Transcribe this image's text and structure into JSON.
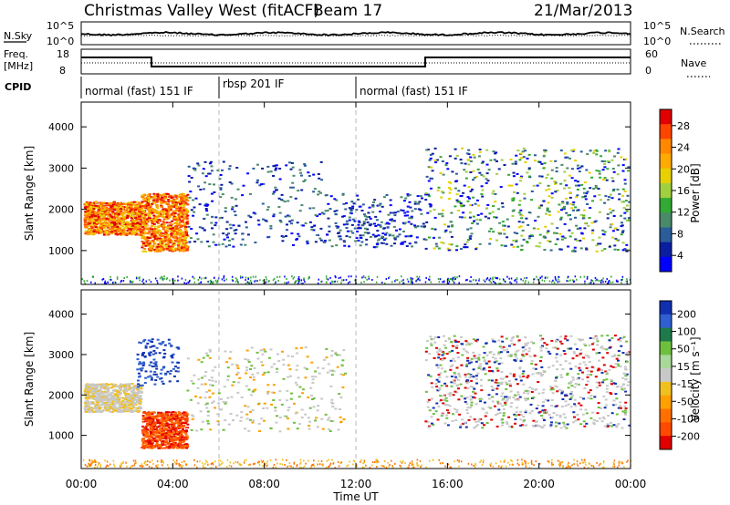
{
  "header": {
    "station": "Christmas Valley West (fitACF)",
    "beam": "Beam 17",
    "date": "21/Mar/2013"
  },
  "strips": {
    "nsky_label": "N.Sky",
    "nsearch_label": "N.Search",
    "noise_ticks": [
      "10^5",
      "10^0"
    ],
    "freq_label_1": "Freq.",
    "freq_label_2": "[MHz]",
    "freq_ticks": [
      "18",
      "8"
    ],
    "nave_label": "Nave",
    "nave_ticks": [
      "60",
      "0"
    ],
    "cpid_label": "CPID",
    "cpid_segments": [
      {
        "label": "normal (fast) 151 IF",
        "start": 0,
        "end": 6
      },
      {
        "label": "rbsp 201 IF",
        "start": 6,
        "end": 12
      },
      {
        "label": "normal (fast) 151 IF",
        "start": 12,
        "end": 24
      }
    ]
  },
  "chart_data": [
    {
      "type": "heatmap",
      "name": "power",
      "ylabel": "Slant Range [km]",
      "ylim": [
        180,
        4600
      ],
      "yticks": [
        1000,
        2000,
        3000,
        4000
      ],
      "colorbar_label": "Power [dB]",
      "colorbar_ticks": [
        "28",
        "24",
        "20",
        "16",
        "12",
        "8",
        "4"
      ],
      "colorbar_colors": [
        "#e00000",
        "#ff4400",
        "#ff8800",
        "#ffaa00",
        "#e8d000",
        "#a0d040",
        "#33aa33",
        "#4a8a6a",
        "#2a5d9a",
        "#0a1ea0",
        "#0000ff"
      ],
      "scatter_bands": [
        {
          "t0": 0.1,
          "t1": 2.6,
          "r0": 1400,
          "r1": 2200,
          "dense": "high"
        },
        {
          "t0": 2.6,
          "t1": 4.6,
          "r0": 1000,
          "r1": 2400,
          "dense": "high"
        },
        {
          "t0": 4.6,
          "t1": 10.5,
          "r0": 1100,
          "r1": 3200,
          "dense": "low"
        },
        {
          "t0": 10.5,
          "t1": 15.0,
          "r0": 1100,
          "r1": 2400,
          "dense": "low"
        },
        {
          "t0": 15.0,
          "t1": 23.9,
          "r0": 1000,
          "r1": 3500,
          "dense": "medium"
        }
      ]
    },
    {
      "type": "heatmap",
      "name": "velocity",
      "xlabel": "Time UT",
      "ylabel": "Slant Range [km]",
      "xlim": [
        0,
        24
      ],
      "xticks": [
        "00:00",
        "04:00",
        "08:00",
        "12:00",
        "16:00",
        "20:00",
        "00:00"
      ],
      "ylim": [
        180,
        4600
      ],
      "yticks": [
        1000,
        2000,
        3000,
        4000
      ],
      "colorbar_label": "Velocity [m s⁻¹]",
      "colorbar_ticks": [
        "200",
        "100",
        "50",
        "15",
        "-15",
        "-50",
        "-100",
        "-200"
      ],
      "colorbar_colors": [
        "#1030b0",
        "#2f5fd0",
        "#1e7a4a",
        "#6fbf3f",
        "#a9d99a",
        "#c8c8c8",
        "#f0c020",
        "#ffa000",
        "#ff7000",
        "#ff4a00",
        "#e00000"
      ]
    }
  ]
}
